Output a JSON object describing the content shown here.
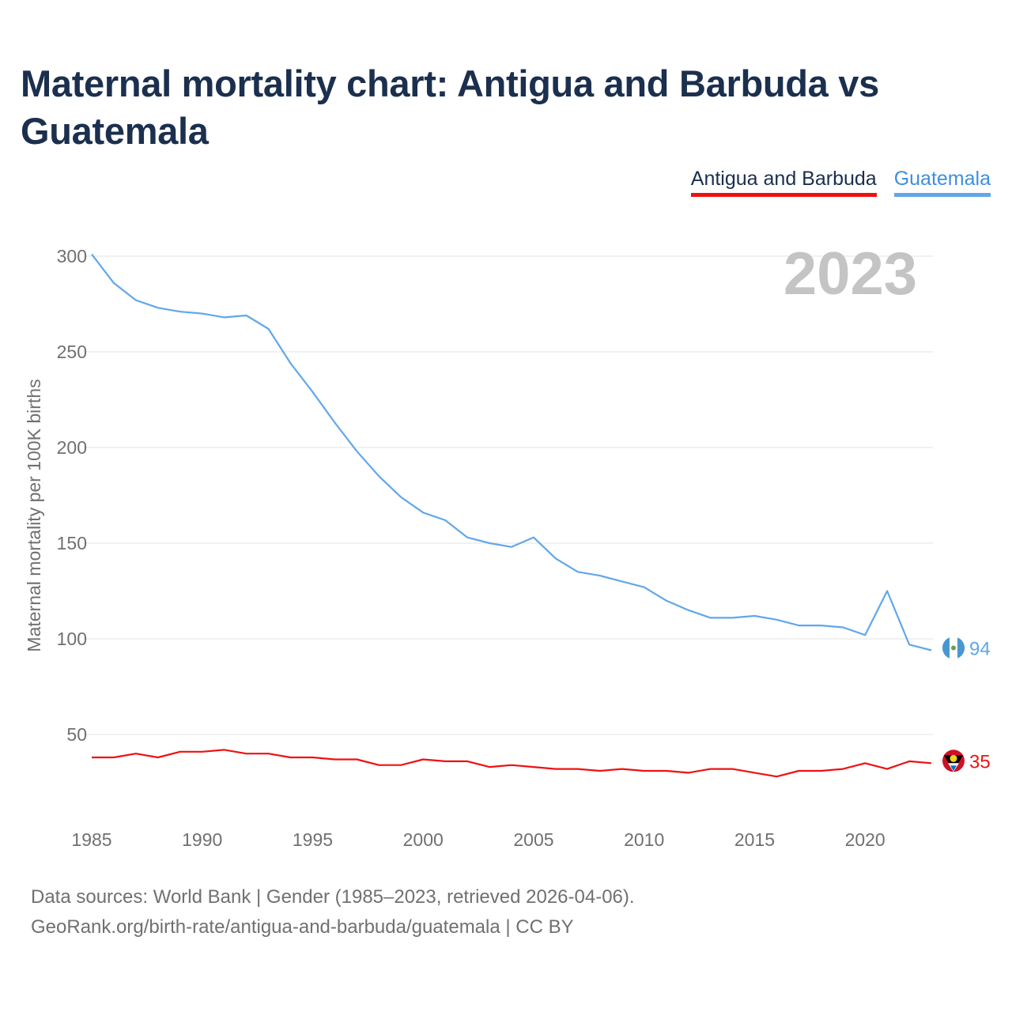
{
  "title": "Maternal mortality chart: Antigua and Barbuda vs Guatemala",
  "legend": [
    {
      "label": "Antigua and Barbuda",
      "color": "#ee1111"
    },
    {
      "label": "Guatemala",
      "color": "#61a7ea"
    }
  ],
  "year_watermark": "2023",
  "footer": {
    "line1": "Data sources: World Bank | Gender (1985–2023, retrieved 2026-04-06).",
    "line2": "GeoRank.org/birth-rate/antigua-and-barbuda/guatemala | CC BY"
  },
  "chart_data": {
    "type": "line",
    "title": "Maternal mortality chart: Antigua and Barbuda vs Guatemala",
    "xlabel": "",
    "ylabel": "Maternal mortality per 100K births",
    "xlim": [
      1985,
      2023
    ],
    "ylim": [
      30,
      304
    ],
    "x_ticks": [
      1985,
      1990,
      1995,
      2000,
      2005,
      2010,
      2015,
      2020
    ],
    "y_ticks": [
      50,
      100,
      150,
      200,
      250,
      300
    ],
    "grid": true,
    "legend_position": "top-right",
    "x": [
      1985,
      1986,
      1987,
      1988,
      1989,
      1990,
      1991,
      1992,
      1993,
      1994,
      1995,
      1996,
      1997,
      1998,
      1999,
      2000,
      2001,
      2002,
      2003,
      2004,
      2005,
      2006,
      2007,
      2008,
      2009,
      2010,
      2011,
      2012,
      2013,
      2014,
      2015,
      2016,
      2017,
      2018,
      2019,
      2020,
      2021,
      2022,
      2023
    ],
    "series": [
      {
        "name": "Guatemala",
        "color": "#61a7ea",
        "end_label": "94",
        "values": [
          301,
          286,
          277,
          273,
          271,
          270,
          268,
          269,
          262,
          244,
          229,
          213,
          198,
          185,
          174,
          166,
          162,
          153,
          150,
          148,
          153,
          142,
          135,
          133,
          130,
          127,
          120,
          115,
          111,
          111,
          112,
          110,
          107,
          107,
          106,
          102,
          125,
          97,
          94
        ]
      },
      {
        "name": "Antigua and Barbuda",
        "color": "#ee1111",
        "end_label": "35",
        "values": [
          38,
          38,
          40,
          38,
          41,
          41,
          42,
          40,
          40,
          38,
          38,
          37,
          37,
          34,
          34,
          37,
          36,
          36,
          33,
          34,
          33,
          32,
          32,
          31,
          32,
          31,
          31,
          30,
          32,
          32,
          30,
          28,
          31,
          31,
          32,
          35,
          32,
          36,
          35
        ]
      }
    ]
  }
}
